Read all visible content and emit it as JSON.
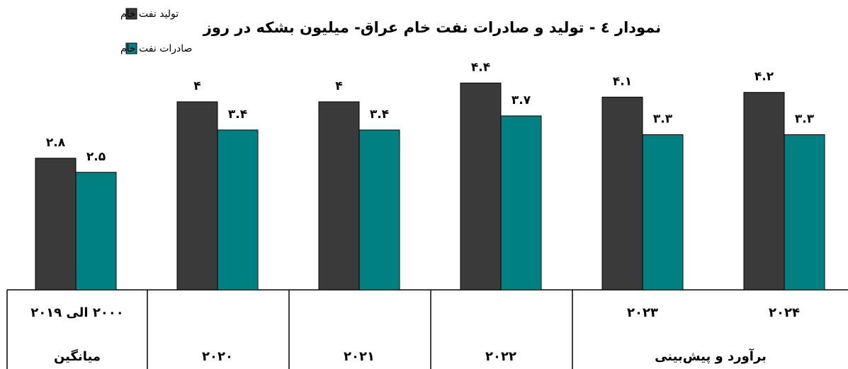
{
  "chart_data": {
    "type": "bar",
    "title": "نمودار ٤ - تولید و صادرات نفت خام عراق- میلیون بشکه در روز",
    "categories": [
      "۲۰۰۰ الی ۲۰۱۹",
      "۲۰۲۰",
      "۲۰۲۱",
      "۲۰۲۲",
      "۲۰۲۳",
      "۲۰۲۴"
    ],
    "category_groups": [
      "میانگین",
      "برآورد و پیش‌بینی"
    ],
    "series": [
      {
        "name": "تولید نفت خام",
        "color": "#3a3a3a",
        "values": [
          2.8,
          4,
          4,
          4.4,
          4.1,
          4.2
        ],
        "value_labels": [
          "۲.۸",
          "۴",
          "۴",
          "۴.۴",
          "۴.۱",
          "۴.۲"
        ]
      },
      {
        "name": "صادرات نفت خام",
        "color": "#008080",
        "values": [
          2.5,
          3.4,
          3.4,
          3.7,
          3.3,
          3.3
        ],
        "value_labels": [
          "۲.۵",
          "۳.۴",
          "۳.۴",
          "۳.۷",
          "۳.۳",
          "۳.۳"
        ]
      }
    ]
  }
}
